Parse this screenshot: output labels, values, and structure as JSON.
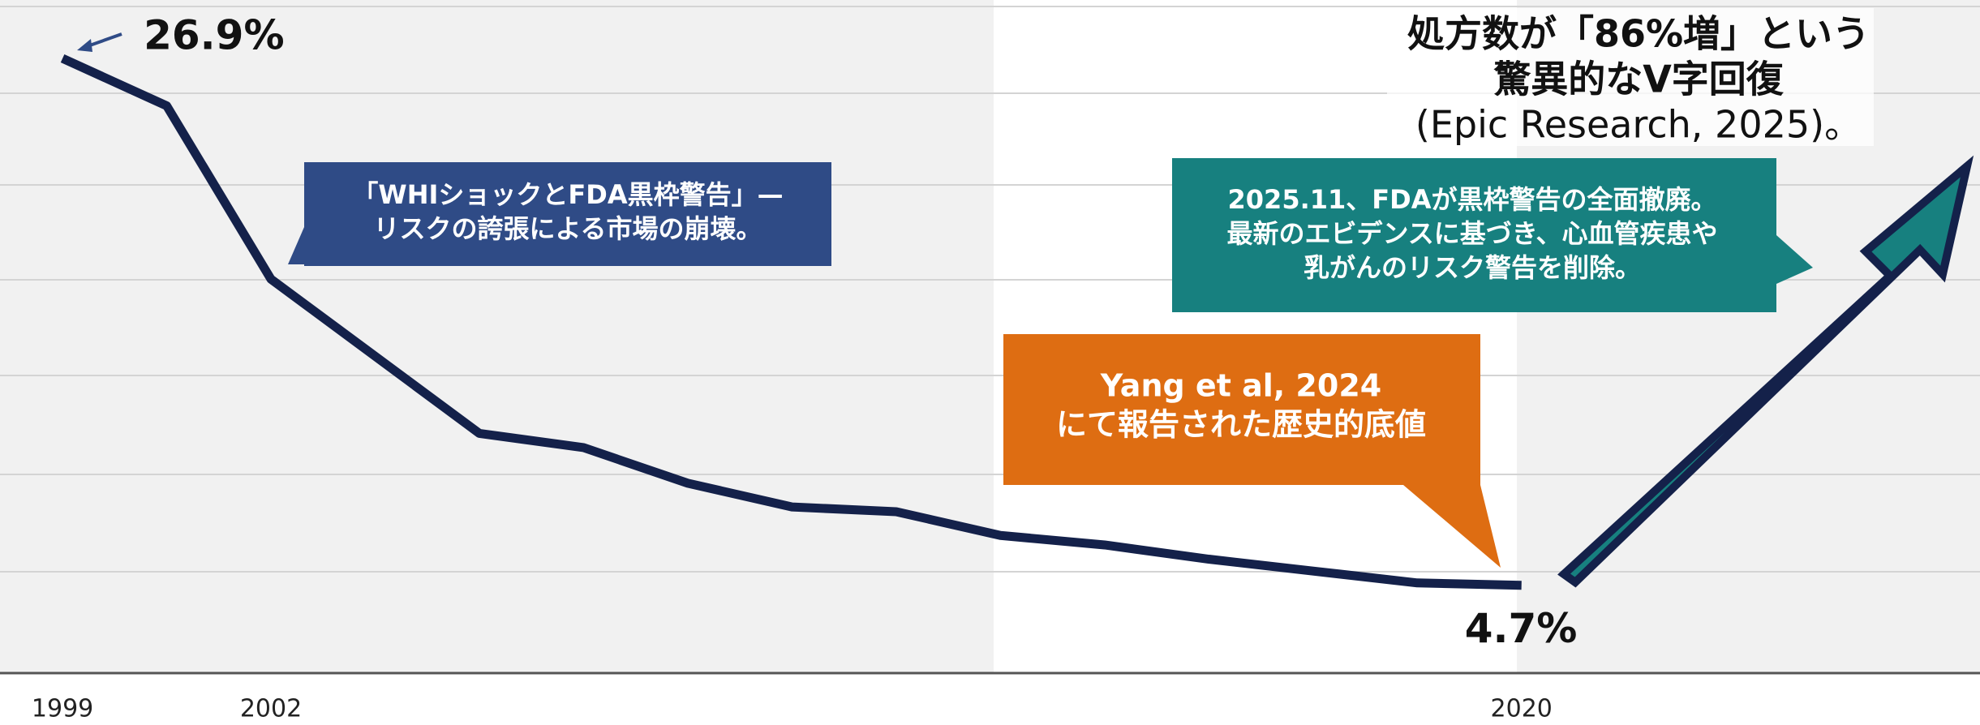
{
  "chart_data": {
    "type": "line",
    "x": [
      1999,
      2000.5,
      2002,
      2005,
      2006.5,
      2008,
      2009.5,
      2011,
      2012.5,
      2014,
      2015.5,
      2017,
      2018.5,
      2020
    ],
    "series": [
      {
        "color": "#14214a",
        "values": [
          26.9,
          24.9,
          17.6,
          11.1,
          10.5,
          9.0,
          8.0,
          7.8,
          6.8,
          6.4,
          5.8,
          5.3,
          4.8,
          4.7
        ],
        "value_labels": [
          "26.9%",
          null,
          null,
          null,
          null,
          null,
          null,
          null,
          null,
          null,
          null,
          null,
          null,
          "4.7%"
        ]
      }
    ],
    "xlim": [
      1998.1,
      2026.6
    ],
    "ylim": [
      1.0,
      29.36
    ],
    "xticks": [
      1999,
      2002,
      2020
    ],
    "annotations": [
      {
        "lines": [
          "「WHIショックとFDA黒枠警告」—",
          "リスクの誇張による市場の崩壊。"
        ],
        "color": "#2f4b86"
      },
      {
        "lines": [
          "2025.11、FDAが黒枠警告の全面撤廃。",
          "最新のエビデンスに基づき、心血管疾患や",
          "乳がんのリスク警告を削除。"
        ],
        "color": "#17807f"
      },
      {
        "lines": [
          "Yang et al, 2024",
          "にて報告された歴史的底値"
        ],
        "color": "#de6d12"
      },
      {
        "lines": [
          "処方数が「86%増」という",
          "驚異的なV字回復",
          "(Epic Research, 2025)。"
        ],
        "color": "#111111"
      }
    ]
  }
}
